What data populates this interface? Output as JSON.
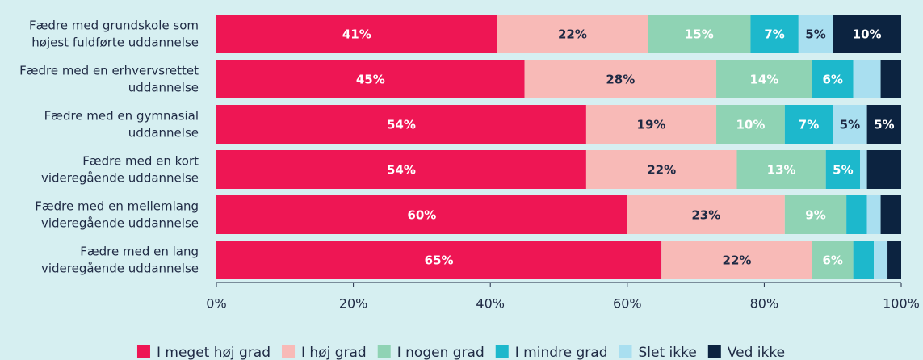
{
  "chart_data": {
    "type": "stacked-barh",
    "categories": [
      "Fædre med grundskole som\nhøjest fuldførte uddannelse",
      "Fædre med en erhvervsrettet\nuddannelse",
      "Fædre med en gymnasial\nuddannelse",
      "Fædre med en kort\nvideregående uddannelse",
      "Fædre med en mellemlang\nvideregående uddannelse",
      "Fædre med en lang\nvideregående uddannelse"
    ],
    "series": [
      {
        "name": "I meget høj grad",
        "color": "#ee1654",
        "label_color": "#ffffff",
        "values": [
          41,
          45,
          54,
          54,
          60,
          65
        ],
        "value_labels": [
          "41%",
          "45%",
          "54%",
          "54%",
          "60%",
          "65%"
        ]
      },
      {
        "name": "I høj grad",
        "color": "#f8bab7",
        "label_color": "#1f2a44",
        "values": [
          22,
          28,
          19,
          22,
          23,
          22
        ],
        "value_labels": [
          "22%",
          "28%",
          "19%",
          "22%",
          "23%",
          "22%"
        ]
      },
      {
        "name": "I nogen grad",
        "color": "#8fd3b4",
        "label_color": "#ffffff",
        "values": [
          15,
          14,
          10,
          13,
          9,
          6
        ],
        "value_labels": [
          "15%",
          "14%",
          "10%",
          "13%",
          "9%",
          "6%"
        ]
      },
      {
        "name": "I mindre grad",
        "color": "#1db8cc",
        "label_color": "#ffffff",
        "values": [
          7,
          6,
          7,
          5,
          3,
          3
        ],
        "value_labels": [
          "7%",
          "6%",
          "7%",
          "5%",
          null,
          null
        ]
      },
      {
        "name": "Slet ikke",
        "color": "#a9dff0",
        "label_color": "#1f2a44",
        "values": [
          5,
          4,
          5,
          1,
          2,
          2
        ],
        "value_labels": [
          "5%",
          null,
          "5%",
          null,
          null,
          null
        ]
      },
      {
        "name": "Ved ikke",
        "color": "#0c2340",
        "label_color": "#ffffff",
        "values": [
          10,
          3,
          5,
          5,
          3,
          2
        ],
        "value_labels": [
          "10%",
          null,
          "5%",
          null,
          null,
          null
        ]
      }
    ],
    "xlim": [
      0,
      100
    ],
    "xticks": [
      {
        "value": 0,
        "label": "0%"
      },
      {
        "value": 20,
        "label": "20%"
      },
      {
        "value": 40,
        "label": "40%"
      },
      {
        "value": 60,
        "label": "60%"
      },
      {
        "value": 80,
        "label": "80%"
      },
      {
        "value": 100,
        "label": "100%"
      }
    ],
    "legend": "bottom"
  }
}
